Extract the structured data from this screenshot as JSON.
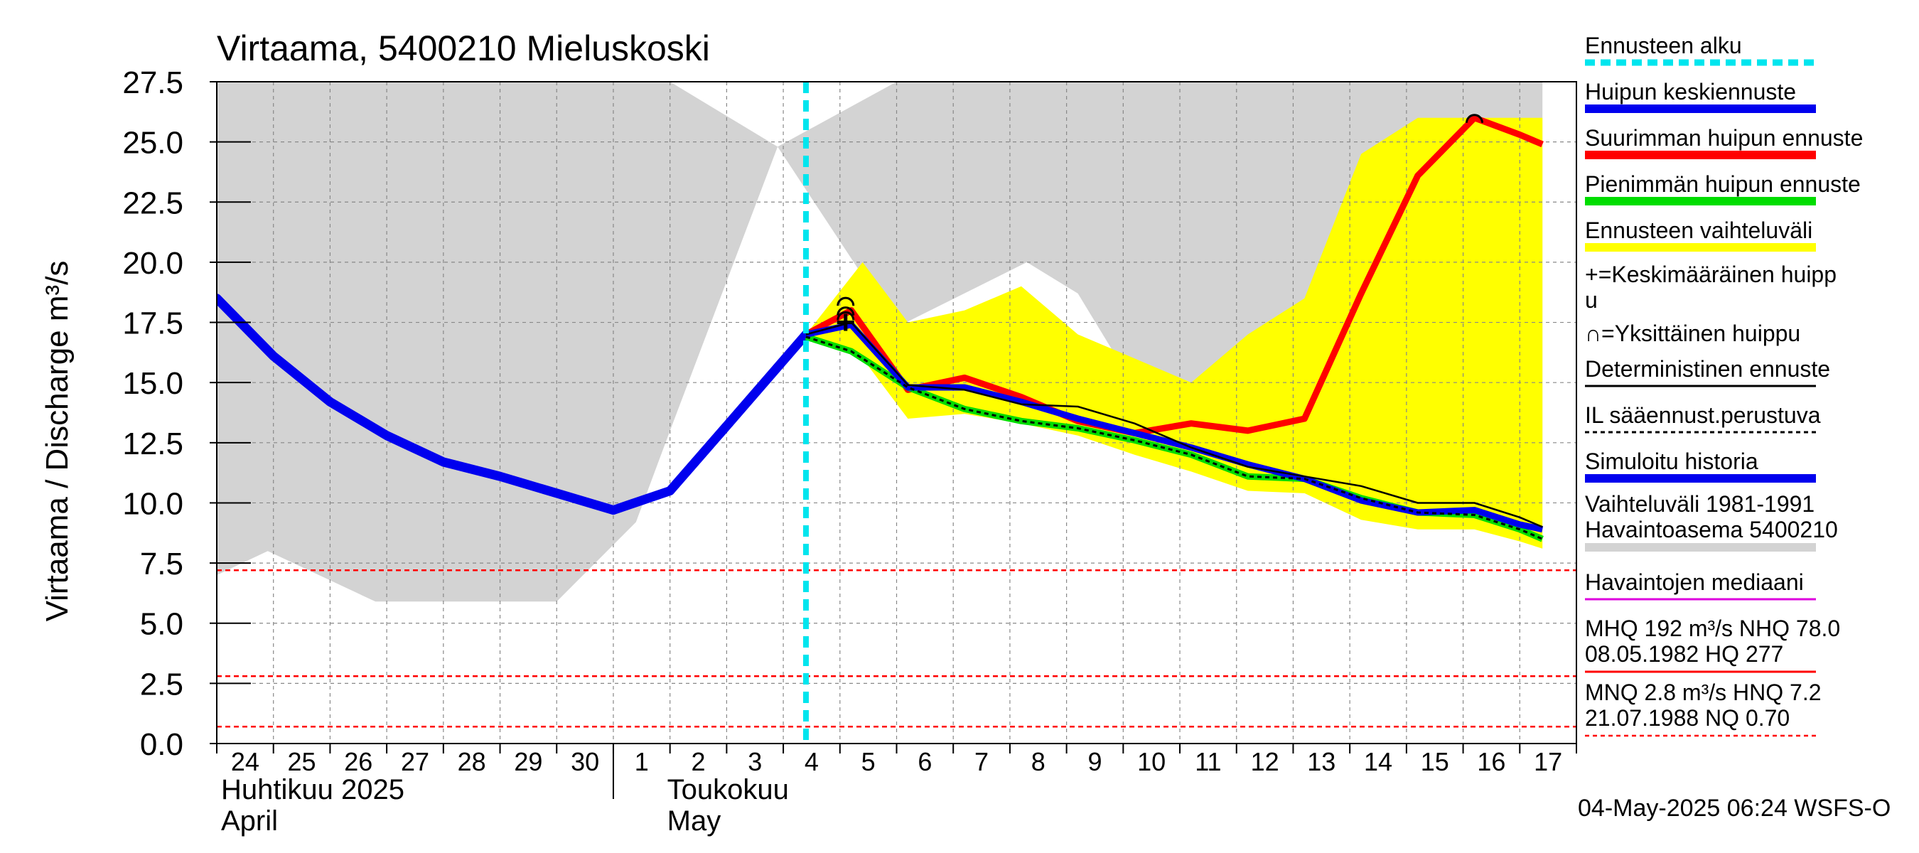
{
  "chart_data": {
    "type": "line",
    "title": "Virtaama, 5400210 Mieluskoski",
    "ylabel": "Virtaama / Discharge    m³/s",
    "ylim": [
      0,
      27.5
    ],
    "y_ticks": [
      "0.0",
      "2.5",
      "5.0",
      "7.5",
      "10.0",
      "12.5",
      "15.0",
      "17.5",
      "20.0",
      "22.5",
      "25.0",
      "27.5"
    ],
    "x_range": [
      "2025-04-24",
      "2025-05-18"
    ],
    "x_ticks": [
      "24",
      "25",
      "26",
      "27",
      "28",
      "29",
      "30",
      "1",
      "2",
      "3",
      "4",
      "5",
      "6",
      "7",
      "8",
      "9",
      "10",
      "11",
      "12",
      "13",
      "14",
      "15",
      "16",
      "17"
    ],
    "month_labels": [
      {
        "fi": "Huhtikuu  2025",
        "en": "April"
      },
      {
        "fi": "Toukokuu",
        "en": "May"
      }
    ],
    "forecast_start": "2025-05-04 06:00",
    "footer": "04-May-2025 06:24 WSFS-O",
    "colors": {
      "history_band": "#d3d3d3",
      "forecast_band": "#ffff00",
      "simulated": "#0000ee",
      "mean_peak": "#0000ee",
      "max_peak": "#ff0000",
      "min_peak": "#00dd00",
      "deterministic": "#000000",
      "il_based": "#000000",
      "median": "#dd00dd",
      "forecast_start": "#00e5ee",
      "ref_lines": "#ff0000"
    },
    "reference_lines": [
      7.2,
      2.8,
      0.7
    ],
    "history_band": {
      "x": [
        0,
        0.9,
        2.8,
        6.0,
        7.4,
        8.0,
        9.9,
        12.0,
        14.3,
        15.2,
        16.8,
        18.5,
        20.3,
        23.4
      ],
      "upper": [
        27.5,
        27.5,
        27.5,
        27.5,
        27.5,
        27.5,
        24.8,
        27.5,
        27.5,
        27.5,
        27.5,
        27.5,
        27.5,
        27.5
      ],
      "lower": [
        7.0,
        8.0,
        5.9,
        5.9,
        9.2,
        13.0,
        24.8,
        17.3,
        20.0,
        18.7,
        12.5,
        12.0,
        12.0,
        11.0
      ]
    },
    "forecast_band": {
      "x": [
        10.4,
        11.4,
        12.2,
        13.2,
        14.2,
        15.2,
        16.2,
        17.2,
        18.2,
        19.2,
        20.2,
        21.2,
        22.2,
        23.0,
        23.4
      ],
      "upper": [
        17.0,
        20.0,
        17.5,
        18.0,
        19.0,
        17.0,
        16.0,
        15.0,
        17.0,
        18.5,
        24.5,
        26.0,
        26.0,
        26.0,
        26.0
      ],
      "lower": [
        17.0,
        16.0,
        13.5,
        13.7,
        13.3,
        12.8,
        12.0,
        11.3,
        10.5,
        10.4,
        9.3,
        8.9,
        8.9,
        8.4,
        8.1
      ]
    },
    "series": [
      {
        "name": "Simuloitu historia",
        "x": [
          0,
          1,
          2,
          3,
          4,
          5,
          6,
          7,
          8,
          9,
          10.4
        ],
        "values": [
          18.5,
          16.1,
          14.2,
          12.8,
          11.7,
          11.1,
          10.4,
          9.7,
          10.5,
          13.2,
          17.0
        ]
      },
      {
        "name": "Huipun keskiennuste",
        "x": [
          10.4,
          11.2,
          12.2,
          13.2,
          14.2,
          15.2,
          16.2,
          17.2,
          18.2,
          19.2,
          20.2,
          21.2,
          22.2,
          23.0,
          23.4
        ],
        "values": [
          17.0,
          17.4,
          14.8,
          14.8,
          14.2,
          13.5,
          12.9,
          12.3,
          11.6,
          11.0,
          10.1,
          9.6,
          9.7,
          9.1,
          8.9
        ]
      },
      {
        "name": "Suurimman huipun ennuste",
        "x": [
          10.4,
          11.2,
          12.2,
          13.2,
          14.2,
          15.2,
          16.2,
          17.2,
          18.2,
          19.2,
          20.2,
          21.2,
          22.2,
          23.0,
          23.4
        ],
        "values": [
          17.0,
          18.0,
          14.7,
          15.2,
          14.4,
          13.4,
          12.9,
          13.3,
          13.0,
          13.5,
          18.7,
          23.6,
          26.0,
          25.3,
          24.9
        ]
      },
      {
        "name": "Pienimmän huipun ennuste",
        "x": [
          10.4,
          11.2,
          12.2,
          13.2,
          14.2,
          15.2,
          16.2,
          17.2,
          18.2,
          19.2,
          20.2,
          21.2,
          22.2,
          23.0,
          23.4
        ],
        "values": [
          16.9,
          16.3,
          14.8,
          13.9,
          13.4,
          13.1,
          12.6,
          12.0,
          11.1,
          11.0,
          10.2,
          9.6,
          9.5,
          8.9,
          8.5
        ]
      },
      {
        "name": "Deterministinen ennuste",
        "x": [
          10.4,
          11.2,
          12.2,
          13.2,
          14.2,
          15.2,
          16.2,
          17.2,
          18.2,
          19.2,
          20.2,
          21.2,
          22.2,
          23.0,
          23.4
        ],
        "values": [
          17.0,
          17.5,
          14.9,
          14.7,
          14.1,
          14.0,
          13.3,
          12.3,
          11.5,
          11.1,
          10.7,
          10.0,
          10.0,
          9.4,
          9.0
        ]
      },
      {
        "name": "IL sääennust.perustuva",
        "x": [
          10.4,
          11.2,
          12.2,
          13.2,
          14.2,
          15.2,
          16.2,
          17.2,
          18.2,
          19.2,
          20.2,
          21.2,
          22.2,
          23.0,
          23.4
        ],
        "values": [
          16.9,
          16.3,
          14.8,
          13.9,
          13.4,
          13.1,
          12.6,
          12.0,
          11.1,
          11.0,
          10.2,
          9.6,
          9.5,
          8.9,
          8.5
        ]
      }
    ],
    "peaks": [
      {
        "x": 11.1,
        "y": 18.4,
        "type": "single"
      },
      {
        "x": 11.1,
        "y": 18.0,
        "type": "single"
      },
      {
        "x": 11.1,
        "y": 17.8,
        "type": "single"
      },
      {
        "x": 11.1,
        "y": 17.5,
        "type": "mean"
      },
      {
        "x": 22.2,
        "y": 26.0,
        "type": "single"
      }
    ],
    "legend": [
      {
        "label": "Ennusteen alku",
        "style": "dashed",
        "color": "#00e5ee"
      },
      {
        "label": "Huipun keskiennuste",
        "style": "thick",
        "color": "#0000ee"
      },
      {
        "label": "Suurimman huipun ennuste",
        "style": "thick",
        "color": "#ff0000"
      },
      {
        "label": "Pienimmän huipun ennuste",
        "style": "thick",
        "color": "#00dd00"
      },
      {
        "label": "Ennusteen vaihteluväli",
        "style": "thick",
        "color": "#ffff00"
      },
      {
        "label": "+=Keskimääräinen huipp",
        "label2": "u",
        "style": "none"
      },
      {
        "label": "∩=Yksittäinen huippu",
        "style": "none"
      },
      {
        "label": "Deterministinen ennuste",
        "style": "thin",
        "color": "#000000"
      },
      {
        "label": "IL sääennust.perustuva",
        "style": "dashed-thin",
        "color": "#000000"
      },
      {
        "label": "Simuloitu historia",
        "style": "thick",
        "color": "#0000ee"
      },
      {
        "label": "Vaihteluväli 1981-1991",
        "label2": " Havaintoasema 5400210",
        "style": "thick",
        "color": "#d3d3d3"
      },
      {
        "label": "Havaintojen mediaani",
        "style": "thin",
        "color": "#dd00dd"
      },
      {
        "label": "MHQ  192 m³/s NHQ 78.0",
        "label2": "08.05.1982 HQ  277",
        "style": "thin",
        "color": "#ff0000"
      },
      {
        "label": "MNQ  2.8 m³/s HNQ  7.2",
        "label2": "21.07.1988 NQ 0.70",
        "style": "dotted",
        "color": "#ff0000"
      }
    ]
  }
}
